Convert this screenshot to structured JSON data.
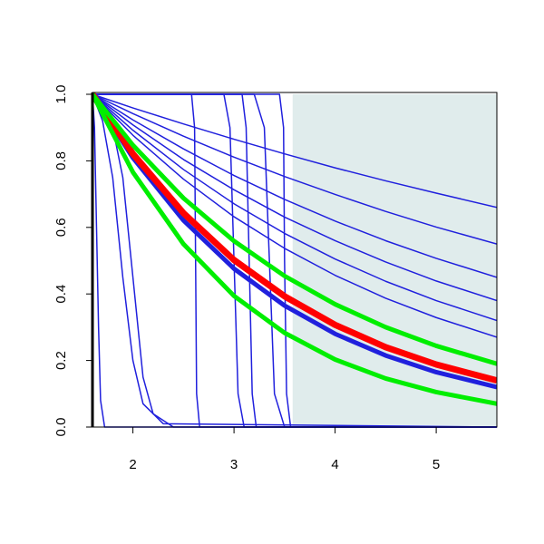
{
  "chart_data": {
    "type": "line",
    "xlim": [
      1.6,
      5.6
    ],
    "ylim": [
      0,
      1
    ],
    "xticks": [
      2,
      3,
      4,
      5
    ],
    "yticks": [
      {
        "value": 0,
        "label": "0.0"
      },
      0.2,
      0.4,
      0.6,
      0.8,
      {
        "value": 1,
        "label": "1.0"
      }
    ],
    "shaded_region": {
      "x": [
        3.58,
        5.6
      ],
      "color": "#e0ecec"
    },
    "series": [
      {
        "color": "#2020dd",
        "line_width": 1.5,
        "x": [
          1.6,
          1.62,
          1.64,
          1.66,
          1.68,
          1.72,
          5.6
        ],
        "values": [
          1,
          0.9,
          0.6,
          0.3,
          0.08,
          0,
          0
        ]
      },
      {
        "color": "#2020dd",
        "line_width": 1.5,
        "x": [
          1.6,
          1.7,
          1.8,
          1.9,
          2.0,
          2.1,
          2.3,
          5.6
        ],
        "values": [
          1,
          0.92,
          0.75,
          0.45,
          0.2,
          0.07,
          0.01,
          0
        ]
      },
      {
        "color": "#2020dd",
        "line_width": 1.5,
        "x": [
          1.6,
          1.8,
          1.9,
          2.0,
          2.1,
          2.2,
          2.4,
          5.6
        ],
        "values": [
          1,
          0.9,
          0.75,
          0.45,
          0.15,
          0.04,
          0,
          0
        ]
      },
      {
        "color": "#2020dd",
        "line_width": 1.5,
        "x": [
          1.6,
          2.58,
          2.61,
          2.62,
          2.63,
          2.66,
          5.6
        ],
        "values": [
          1,
          1,
          0.9,
          0.5,
          0.1,
          0,
          0
        ]
      },
      {
        "color": "#2020dd",
        "line_width": 1.5,
        "x": [
          1.6,
          2.9,
          2.96,
          3.0,
          3.04,
          3.1,
          5.6
        ],
        "values": [
          1,
          1,
          0.9,
          0.5,
          0.1,
          0,
          0
        ]
      },
      {
        "color": "#2020dd",
        "line_width": 1.5,
        "x": [
          1.6,
          3.08,
          3.12,
          3.15,
          3.18,
          3.22,
          5.6
        ],
        "values": [
          1,
          1,
          0.9,
          0.5,
          0.1,
          0,
          0
        ]
      },
      {
        "color": "#2020dd",
        "line_width": 1.5,
        "x": [
          1.6,
          3.2,
          3.3,
          3.35,
          3.4,
          3.5,
          5.6
        ],
        "values": [
          1,
          1,
          0.9,
          0.5,
          0.1,
          0,
          0
        ]
      },
      {
        "color": "#2020dd",
        "line_width": 1.5,
        "x": [
          1.6,
          3.45,
          3.49,
          3.5,
          3.52,
          3.56,
          5.6
        ],
        "values": [
          1,
          1,
          0.9,
          0.5,
          0.1,
          0,
          0
        ]
      },
      {
        "color": "#2020dd",
        "line_width": 1.5,
        "x": [
          1.6,
          2.0,
          2.5,
          3.0,
          3.5,
          4.0,
          4.5,
          5.0,
          5.6
        ],
        "values": [
          1,
          0.959,
          0.911,
          0.865,
          0.821,
          0.779,
          0.74,
          0.703,
          0.66
        ]
      },
      {
        "color": "#2020dd",
        "line_width": 1.5,
        "x": [
          1.6,
          2.0,
          2.5,
          3.0,
          3.5,
          4.0,
          4.5,
          5.0,
          5.6
        ],
        "values": [
          1,
          0.942,
          0.874,
          0.811,
          0.753,
          0.699,
          0.648,
          0.601,
          0.55
        ]
      },
      {
        "color": "#2020dd",
        "line_width": 1.5,
        "x": [
          1.6,
          2.0,
          2.5,
          3.0,
          3.5,
          4.0,
          4.5,
          5.0,
          5.6
        ],
        "values": [
          1,
          0.923,
          0.836,
          0.756,
          0.684,
          0.619,
          0.56,
          0.507,
          0.45
        ]
      },
      {
        "color": "#2020dd",
        "line_width": 1.5,
        "x": [
          1.6,
          2.0,
          2.5,
          3.0,
          3.5,
          4.0,
          4.5,
          5.0,
          5.6
        ],
        "values": [
          1,
          0.908,
          0.804,
          0.713,
          0.631,
          0.56,
          0.496,
          0.439,
          0.38
        ]
      },
      {
        "color": "#2020dd",
        "line_width": 1.5,
        "x": [
          1.6,
          2.0,
          2.5,
          3.0,
          3.5,
          4.0,
          4.5,
          5.0,
          5.6
        ],
        "values": [
          1,
          0.892,
          0.774,
          0.671,
          0.582,
          0.505,
          0.438,
          0.38,
          0.32
        ]
      },
      {
        "color": "#2020dd",
        "line_width": 1.5,
        "x": [
          1.6,
          2.0,
          2.5,
          3.0,
          3.5,
          4.0,
          4.5,
          5.0,
          5.6
        ],
        "values": [
          1,
          0.877,
          0.745,
          0.632,
          0.537,
          0.456,
          0.387,
          0.329,
          0.27
        ]
      },
      {
        "color": "#2020dd",
        "line_width": 5,
        "x": [
          1.6,
          2.0,
          2.5,
          3.0,
          3.5,
          4.0,
          4.5,
          5.0,
          5.6
        ],
        "values": [
          1,
          0.809,
          0.621,
          0.476,
          0.365,
          0.28,
          0.215,
          0.165,
          0.12
        ]
      },
      {
        "color": "#ff0000",
        "line_width": 7,
        "x": [
          1.6,
          2.0,
          2.5,
          3.0,
          3.5,
          4.0,
          4.5,
          5.0,
          5.6
        ],
        "values": [
          1,
          0.821,
          0.643,
          0.502,
          0.393,
          0.307,
          0.24,
          0.188,
          0.14
        ]
      },
      {
        "color": "#00ee00",
        "line_width": 5,
        "x": [
          1.6,
          2.0,
          2.5,
          3.0,
          3.5,
          4.0,
          4.5,
          5.0,
          5.6
        ],
        "values": [
          1,
          0.847,
          0.688,
          0.559,
          0.454,
          0.369,
          0.3,
          0.244,
          0.19
        ]
      },
      {
        "color": "#00ee00",
        "line_width": 5,
        "x": [
          1.6,
          2.0,
          2.5,
          3.0,
          3.5,
          4.0,
          4.5,
          5.0,
          5.6
        ],
        "values": [
          1,
          0.766,
          0.55,
          0.394,
          0.283,
          0.203,
          0.146,
          0.105,
          0.07
        ]
      }
    ]
  }
}
